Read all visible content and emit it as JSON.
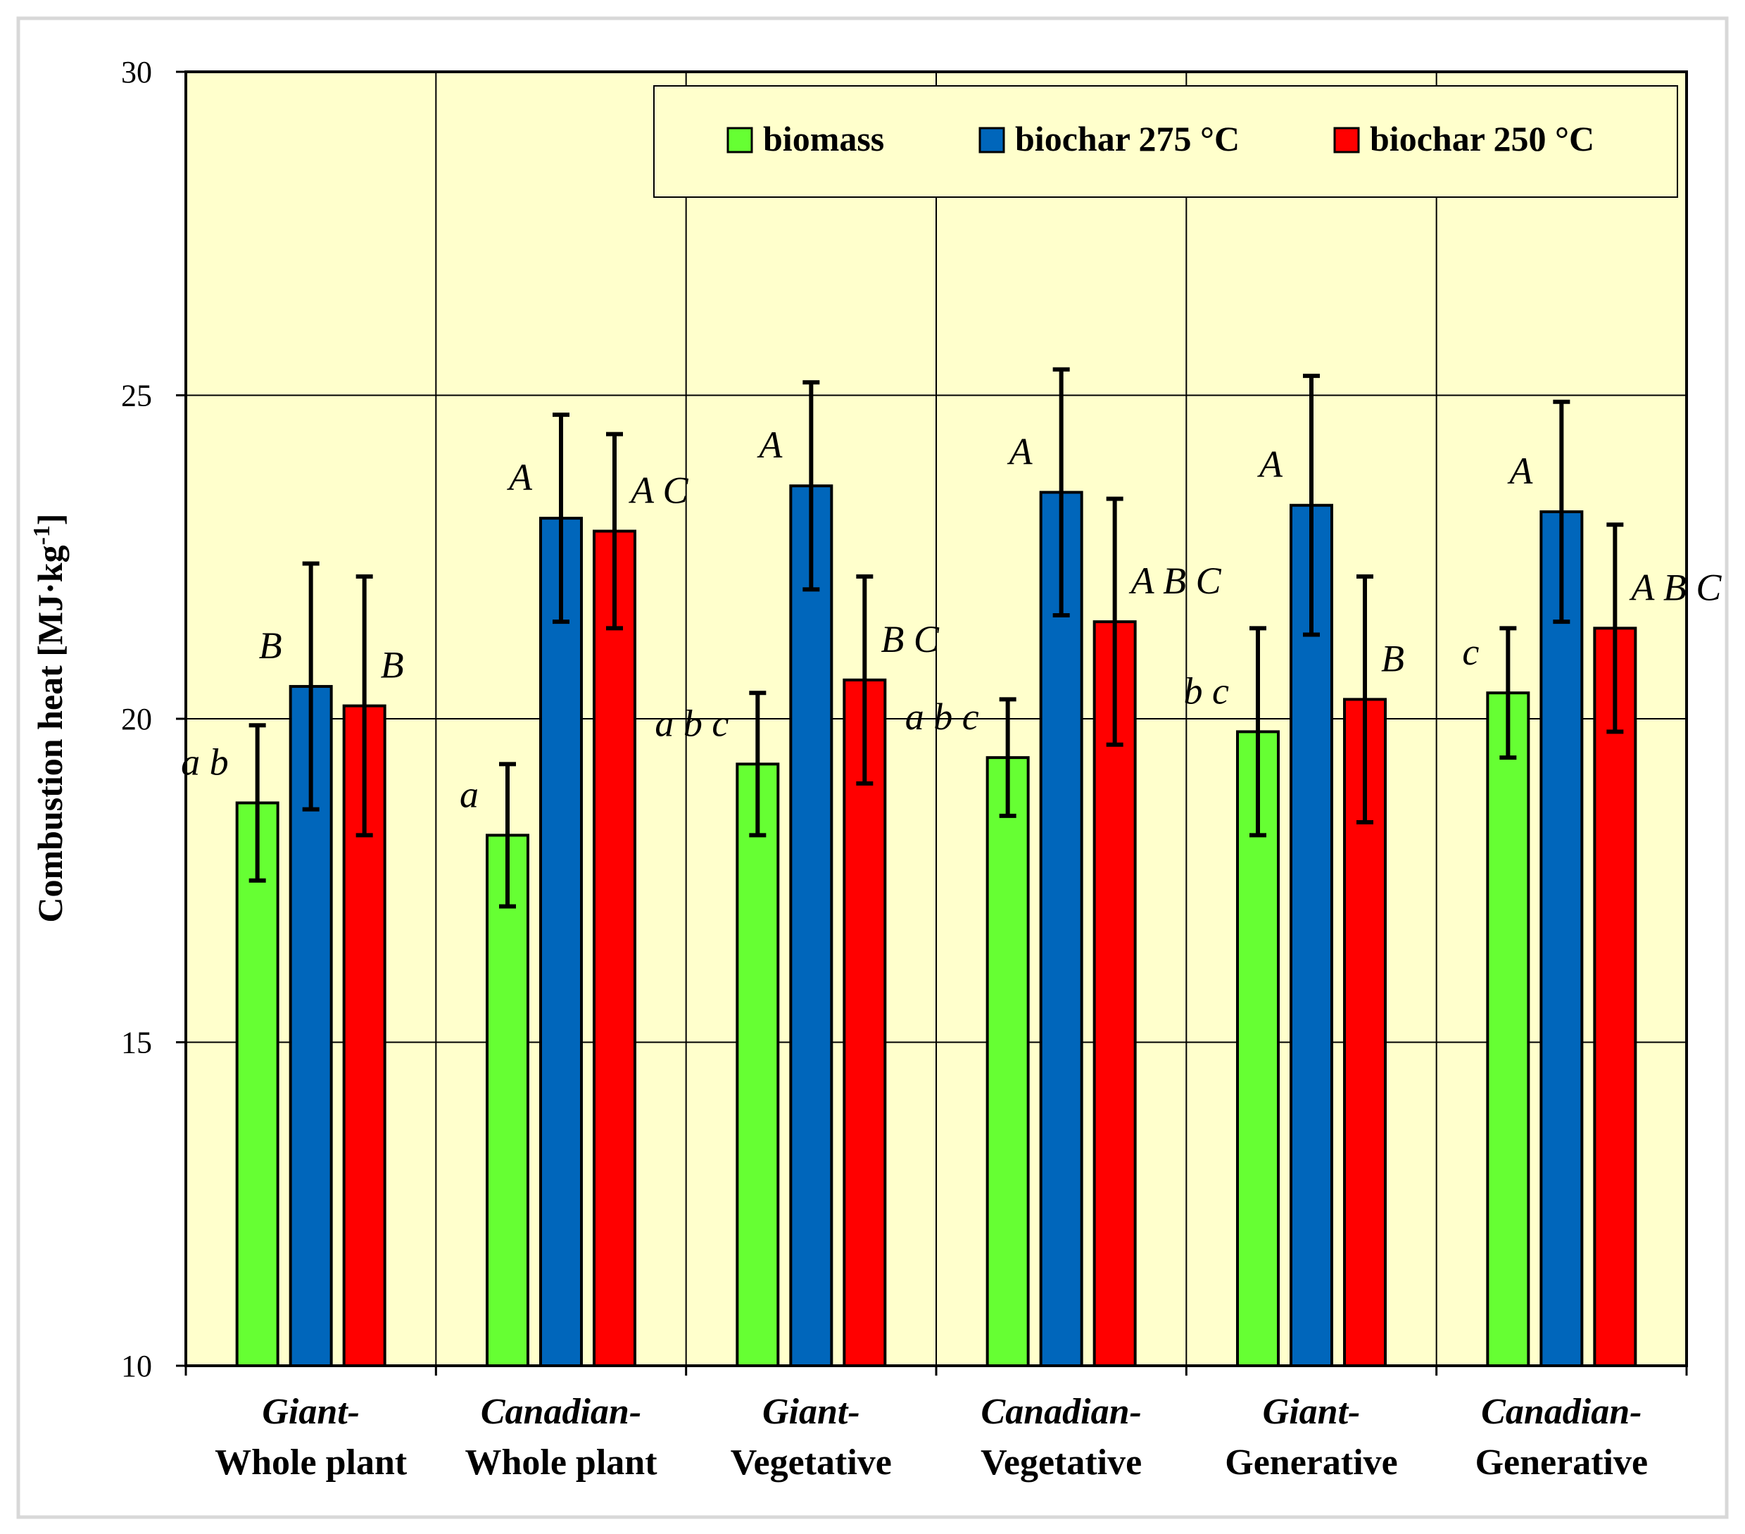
{
  "chart_data": {
    "type": "bar",
    "title": "",
    "xlabel": "",
    "ylabel": "Combustion heat  [MJ·kg",
    "ylabel_sup": "-1",
    "ylabel_close": "]",
    "ylim": [
      10,
      30
    ],
    "yticks": [
      10,
      15,
      20,
      25,
      30
    ],
    "grid": true,
    "legend_position": "top-right",
    "categories": [
      {
        "line1": "Giant-",
        "line2": "Whole plant"
      },
      {
        "line1": "Canadian-",
        "line2": "Whole plant"
      },
      {
        "line1": "Giant-",
        "line2": "Vegetative"
      },
      {
        "line1": "Canadian-",
        "line2": "Vegetative"
      },
      {
        "line1": "Giant-",
        "line2": "Generative"
      },
      {
        "line1": "Canadian-",
        "line2": "Generative"
      }
    ],
    "series": [
      {
        "name": "biomass",
        "color": "#66ff33",
        "values": [
          18.7,
          18.2,
          19.3,
          19.4,
          19.8,
          20.4
        ],
        "errors": [
          1.2,
          1.1,
          1.1,
          0.9,
          1.6,
          1.0
        ],
        "letters": [
          "a b",
          "a",
          "a b c",
          "a b c",
          "b c",
          "c"
        ]
      },
      {
        "name": "biochar 275 °C",
        "color": "#0066bb",
        "values": [
          20.5,
          23.1,
          23.6,
          23.5,
          23.3,
          23.2
        ],
        "errors": [
          1.9,
          1.6,
          1.6,
          1.9,
          2.0,
          1.7
        ],
        "letters": [
          "B",
          "A",
          "A",
          "A",
          "A",
          "A"
        ]
      },
      {
        "name": "biochar 250 °C",
        "color": "#ff0000",
        "values": [
          20.2,
          22.9,
          20.6,
          21.5,
          20.3,
          21.4
        ],
        "errors": [
          2.0,
          1.5,
          1.6,
          1.9,
          1.9,
          1.6
        ],
        "letters": [
          "B",
          "A C",
          "B C",
          "A B C",
          "B",
          "A B C"
        ]
      }
    ]
  }
}
